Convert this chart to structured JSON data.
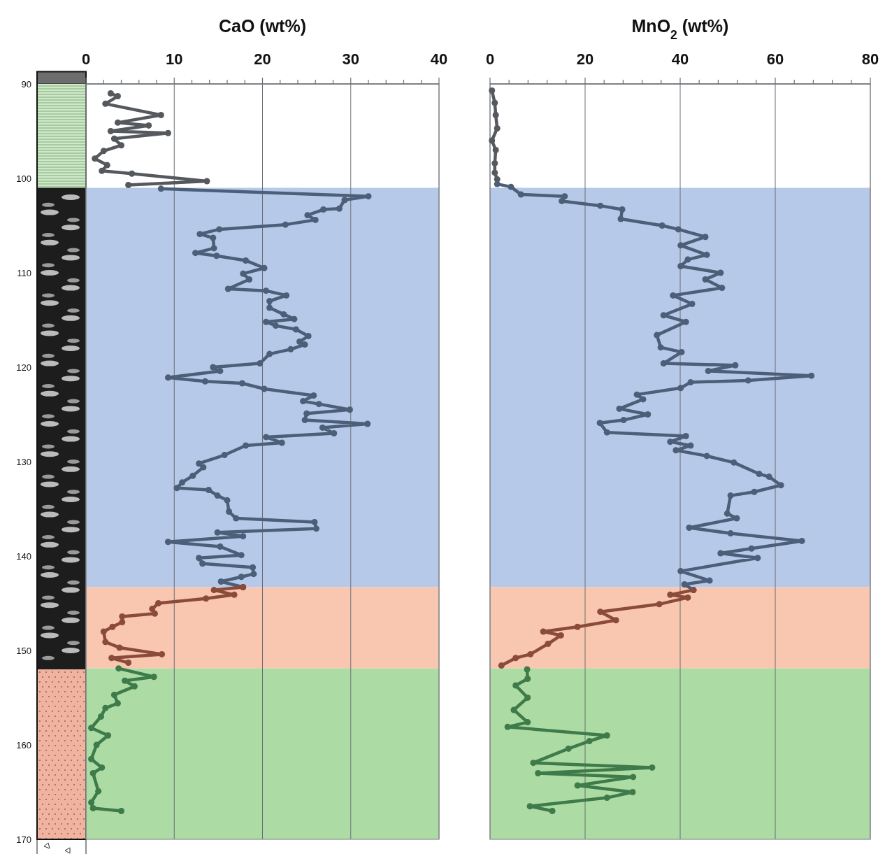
{
  "chart_data": [
    {
      "type": "line",
      "xlabel": "CaO (wt%)",
      "marker": "circle",
      "grid": "x",
      "xlim": [
        0,
        40
      ],
      "xticks": [
        0,
        {
          "value": 2,
          "label": null
        },
        {
          "value": 4,
          "label": null
        },
        {
          "value": 6,
          "label": null
        },
        {
          "value": 8,
          "label": null
        },
        10,
        {
          "value": 12,
          "label": null
        },
        {
          "value": 14,
          "label": null
        },
        {
          "value": 16,
          "label": null
        },
        {
          "value": 18,
          "label": null
        },
        20,
        {
          "value": 22,
          "label": null
        },
        {
          "value": 24,
          "label": null
        },
        {
          "value": 26,
          "label": null
        },
        {
          "value": 28,
          "label": null
        },
        30,
        {
          "value": 32,
          "label": null
        },
        {
          "value": 34,
          "label": null
        },
        {
          "value": 36,
          "label": null
        },
        {
          "value": 38,
          "label": null
        },
        40
      ],
      "ylim": [
        170,
        90
      ],
      "yticks": [
        90,
        100,
        110,
        120,
        130,
        140,
        150,
        160,
        170
      ],
      "bands": [
        {
          "axis": "y",
          "from": 101,
          "to": 143.3,
          "color": "#b7c9e8"
        },
        {
          "axis": "y",
          "from": 143.3,
          "to": 151.9,
          "color": "#f9c6b0"
        },
        {
          "axis": "y",
          "from": 151.9,
          "to": 170,
          "color": "#acdba3"
        }
      ],
      "series": [
        {
          "color": "#55595d",
          "x": [
            2.8,
            3.6,
            2.2,
            8.5,
            3.6,
            7.1,
            2.8,
            9.3,
            3.2,
            4.0,
            2.0,
            1.0,
            2.4,
            1.8,
            5.2,
            13.7,
            4.8
          ],
          "values": [
            91.0,
            91.3,
            92.1,
            93.3,
            94.1,
            94.4,
            95.0,
            95.2,
            95.8,
            96.5,
            97.1,
            97.9,
            98.6,
            99.2,
            99.5,
            100.3,
            100.7
          ]
        },
        {
          "color": "#4b5f78",
          "x": [
            8.5,
            32.0,
            29.3,
            28.7,
            26.9,
            25.1,
            26.0,
            22.6,
            15.1,
            12.9,
            14.4,
            14.5,
            12.4,
            14.8,
            18.1,
            20.2,
            17.8,
            18.5,
            16.1,
            20.4,
            22.7,
            20.8,
            20.8,
            22.4,
            23.6,
            20.4,
            21.5,
            23.8,
            25.2,
            24.2,
            24.8,
            23.2,
            20.8,
            19.7,
            14.4,
            15.2,
            9.3,
            13.5,
            17.7,
            20.2,
            25.8,
            24.6,
            26.4,
            29.9,
            25.0,
            24.8,
            31.9,
            26.8,
            28.1,
            20.4,
            22.2,
            18.1,
            15.7,
            12.8,
            13.3,
            12.1,
            10.9,
            10.3,
            13.9,
            14.9,
            16.0,
            16.2,
            17.0,
            25.9,
            26.1,
            14.9,
            17.8,
            9.3,
            15.2,
            17.6,
            12.8,
            13.2,
            18.9,
            19.0,
            17.6,
            15.3,
            17.8
          ],
          "values": [
            101.1,
            101.9,
            102.3,
            103.2,
            103.3,
            103.9,
            104.4,
            104.9,
            105.4,
            105.9,
            106.3,
            107.4,
            107.9,
            108.2,
            108.7,
            109.5,
            110.1,
            110.7,
            111.7,
            111.9,
            112.4,
            113.0,
            113.7,
            114.4,
            114.9,
            115.2,
            115.6,
            116.0,
            116.7,
            117.3,
            117.6,
            118.1,
            118.6,
            119.6,
            120.0,
            120.4,
            121.1,
            121.5,
            121.7,
            122.3,
            123.0,
            123.6,
            123.9,
            124.5,
            124.9,
            125.6,
            126.0,
            126.4,
            127.0,
            127.4,
            128.0,
            128.3,
            129.3,
            130.2,
            130.6,
            131.5,
            132.2,
            132.8,
            133.0,
            133.6,
            134.1,
            135.3,
            136.0,
            136.4,
            137.1,
            137.5,
            137.9,
            138.5,
            139.0,
            139.9,
            140.2,
            140.8,
            141.2,
            141.9,
            142.2,
            142.7,
            143.3
          ]
        },
        {
          "color": "#8a4b3b",
          "x": [
            17.8,
            14.5,
            16.8,
            13.6,
            8.2,
            7.5,
            7.8,
            4.1,
            4.1,
            3.0,
            2.0,
            2.2,
            3.8,
            8.6,
            2.9,
            4.8
          ],
          "values": [
            143.3,
            143.6,
            144.1,
            144.5,
            145.0,
            145.6,
            146.1,
            146.4,
            147.0,
            147.5,
            148.0,
            149.1,
            149.7,
            150.4,
            150.8,
            151.3
          ]
        },
        {
          "color": "#3f7a4b",
          "x": [
            3.7,
            7.7,
            4.4,
            5.5,
            3.2,
            3.6,
            2.2,
            1.7,
            0.6,
            2.5,
            1.2,
            0.6,
            1.8,
            0.8,
            1.4,
            0.6,
            0.8,
            4.0
          ],
          "values": [
            151.9,
            152.8,
            153.2,
            153.8,
            154.7,
            155.6,
            156.1,
            157.0,
            158.2,
            159.0,
            160.0,
            161.5,
            162.4,
            163.0,
            164.9,
            166.1,
            166.7,
            167.0
          ]
        }
      ]
    },
    {
      "type": "line",
      "xlabel": "MnO$_{2}$ (wt%)",
      "marker": "circle",
      "grid": "x",
      "xlim": [
        0,
        80
      ],
      "tick_labels": "x",
      "xticks": [
        0,
        {
          "value": 4,
          "label": null
        },
        {
          "value": 8,
          "label": null
        },
        {
          "value": 12,
          "label": null
        },
        {
          "value": 16,
          "label": null
        },
        20,
        {
          "value": 24,
          "label": null
        },
        {
          "value": 28,
          "label": null
        },
        {
          "value": 32,
          "label": null
        },
        {
          "value": 36,
          "label": null
        },
        40,
        {
          "value": 44,
          "label": null
        },
        {
          "value": 48,
          "label": null
        },
        {
          "value": 52,
          "label": null
        },
        {
          "value": 56,
          "label": null
        },
        60,
        {
          "value": 64,
          "label": null
        },
        {
          "value": 68,
          "label": null
        },
        {
          "value": 72,
          "label": null
        },
        {
          "value": 76,
          "label": null
        },
        80
      ],
      "ylim": [
        170,
        90
      ],
      "yticks": [
        90,
        100,
        110,
        120,
        130,
        140,
        150,
        160,
        170
      ],
      "bands": [
        {
          "axis": "y",
          "from": 101,
          "to": 143.3,
          "color": "#b7c9e8"
        },
        {
          "axis": "y",
          "from": 143.3,
          "to": 151.9,
          "color": "#f9c6b0"
        },
        {
          "axis": "y",
          "from": 151.9,
          "to": 170,
          "color": "#acdba3"
        }
      ],
      "series": [
        {
          "color": "#55595d",
          "x": [
            0.4,
            1.0,
            1.2,
            1.5,
            0.4,
            1.2,
            1.0,
            1.0,
            1.5
          ],
          "values": [
            90.7,
            92.0,
            93.3,
            94.7,
            96.0,
            97.0,
            98.4,
            99.4,
            100.1
          ]
        },
        {
          "color": "#4b5f78",
          "x": [
            1.5,
            4.4,
            6.5,
            15.7,
            15.1,
            23.2,
            27.8,
            27.5,
            36.2,
            39.6,
            45.3,
            40.1,
            45.6,
            41.6,
            40.1,
            48.5,
            45.3,
            48.8,
            38.5,
            42.5,
            36.5,
            41.2,
            35.1,
            35.9,
            40.3,
            36.5,
            51.6,
            45.9,
            67.6,
            54.3,
            42.2,
            40.1,
            30.9,
            32.2,
            27.2,
            33.2,
            28.1,
            23.1,
            24.6,
            41.2,
            37.9,
            42.2,
            39.1,
            45.6,
            51.3,
            56.6,
            58.7,
            61.2,
            55.6,
            50.6,
            49.9,
            51.9,
            41.9,
            50.6,
            65.6,
            55.0,
            48.5,
            56.3,
            40.1,
            46.2,
            40.9,
            42.8
          ],
          "values": [
            100.6,
            100.9,
            101.7,
            101.9,
            102.4,
            102.9,
            103.3,
            104.3,
            105.0,
            105.4,
            106.2,
            107.1,
            108.1,
            108.6,
            109.3,
            110.0,
            110.7,
            111.6,
            112.4,
            113.3,
            114.5,
            115.2,
            116.6,
            117.9,
            118.4,
            119.6,
            119.8,
            120.4,
            120.9,
            121.4,
            121.6,
            122.2,
            122.9,
            123.4,
            124.4,
            125.0,
            125.6,
            125.9,
            126.9,
            127.3,
            127.9,
            128.3,
            128.8,
            129.4,
            130.1,
            131.3,
            131.6,
            132.5,
            133.2,
            133.6,
            135.5,
            136.0,
            137.0,
            137.6,
            138.4,
            139.2,
            139.7,
            140.2,
            141.6,
            142.6,
            143.0,
            143.6
          ]
        },
        {
          "color": "#8a4b3b",
          "x": [
            42.8,
            37.9,
            41.6,
            35.6,
            23.2,
            26.5,
            18.4,
            11.2,
            14.9,
            12.2,
            8.5,
            5.4,
            2.4
          ],
          "values": [
            143.6,
            144.1,
            144.4,
            145.1,
            145.9,
            146.8,
            147.5,
            148.0,
            148.4,
            149.3,
            150.4,
            150.8,
            151.6
          ]
        },
        {
          "color": "#3f7a4b",
          "x": [
            7.8,
            7.9,
            5.4,
            7.9,
            5.0,
            7.9,
            3.7,
            24.6,
            20.9,
            16.5,
            9.1,
            34.1,
            10.1,
            30.1,
            18.4,
            30.0,
            24.6,
            8.4,
            13.1
          ],
          "values": [
            152.0,
            153.0,
            153.7,
            155.0,
            156.3,
            157.6,
            158.1,
            159.0,
            159.6,
            160.4,
            161.9,
            162.4,
            163.0,
            163.4,
            164.3,
            165.0,
            165.6,
            166.5,
            167.0
          ]
        }
      ]
    }
  ]
}
